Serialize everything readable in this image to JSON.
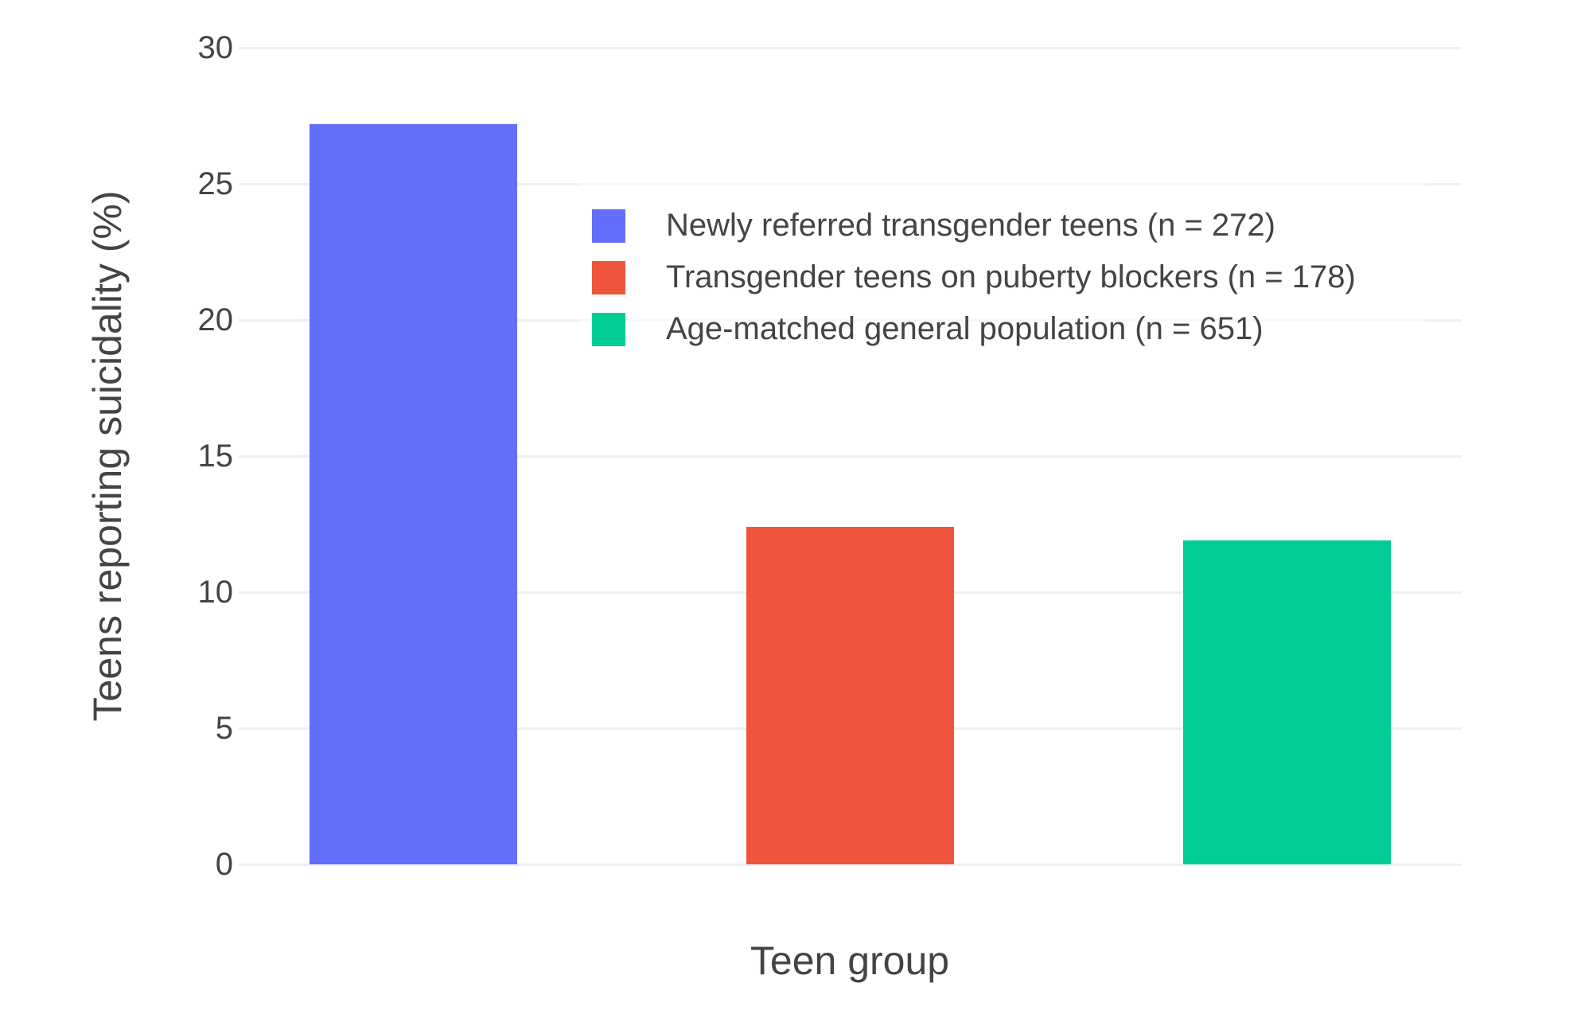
{
  "chart_data": {
    "type": "bar",
    "title": "",
    "xlabel": "Teen group",
    "ylabel": "Teens reporting suicidality (%)",
    "ylim": [
      0,
      30
    ],
    "yticks": [
      0,
      5,
      10,
      15,
      20,
      25,
      30
    ],
    "grid": true,
    "x_tick_labels_visible": false,
    "legend_position": "inside-top-right",
    "series": [
      {
        "name": "Newly referred transgender teens (n = 272)",
        "value": 27.2,
        "color": "#636EFA"
      },
      {
        "name": "Transgender teens on puberty blockers (n = 178)",
        "value": 12.4,
        "color": "#EF553B"
      },
      {
        "name": "Age-matched general population (n = 651)",
        "value": 11.9,
        "color": "#00CC96"
      }
    ],
    "colors": {
      "background": "#FFFFFF",
      "gridline": "#EBF0F8",
      "text": "#444444"
    }
  }
}
